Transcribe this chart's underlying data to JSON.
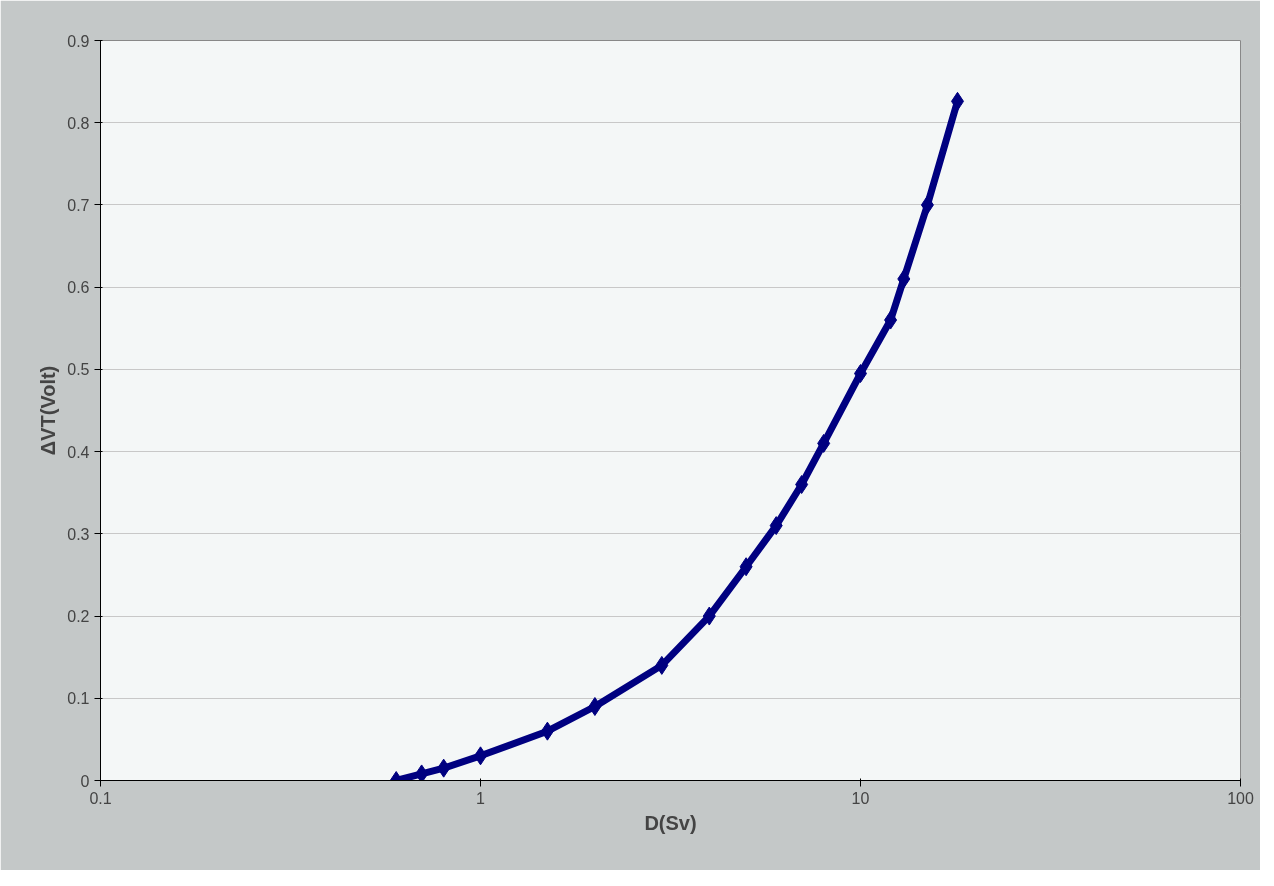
{
  "chart_data": {
    "type": "line",
    "xlabel": "D(Sv)",
    "ylabel": "ΔVT(Volt)",
    "x": [
      0.6,
      0.7,
      0.8,
      1,
      1.5,
      2,
      3,
      4,
      5,
      6,
      7,
      8,
      10,
      12,
      13,
      15,
      18
    ],
    "series": [
      {
        "color": "#000080",
        "values": [
          0,
          0.008,
          0.015,
          0.03,
          0.06,
          0.09,
          0.14,
          0.2,
          0.26,
          0.31,
          0.36,
          0.41,
          0.495,
          0.56,
          0.61,
          0.7,
          0.826
        ]
      }
    ],
    "xlim": [
      0.1,
      100
    ],
    "xticks": [
      0.1,
      1,
      10,
      100
    ],
    "ylim": [
      0,
      0.9
    ],
    "yticks": [
      0,
      0.1,
      0.2,
      0.3,
      0.4,
      0.5,
      0.6,
      0.7,
      0.8,
      0.9
    ],
    "log": "x",
    "grid": "y",
    "marker": "diamond",
    "line_style": "solid"
  }
}
